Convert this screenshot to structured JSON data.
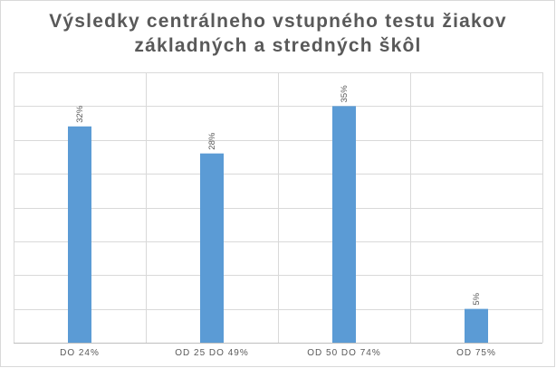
{
  "chart_data": {
    "type": "bar",
    "title_lines": [
      "Výsledky centrálneho vstupného testu žiakov",
      "základných a stredných škôl"
    ],
    "categories": [
      "DO 24%",
      "OD 25 DO 49%",
      "OD 50 DO 74%",
      "OD 75%"
    ],
    "values": [
      32,
      28,
      35,
      5
    ],
    "data_labels": [
      "32%",
      "28%",
      "35%",
      "5%"
    ],
    "ylim": [
      0,
      40
    ],
    "y_gridline_step": 5,
    "vertical_gridlines": true,
    "legend": "none",
    "xlabel": "",
    "ylabel": "",
    "colors": {
      "bar": "#5b9bd5",
      "grid": "#d9d9d9",
      "text": "#595959"
    }
  }
}
